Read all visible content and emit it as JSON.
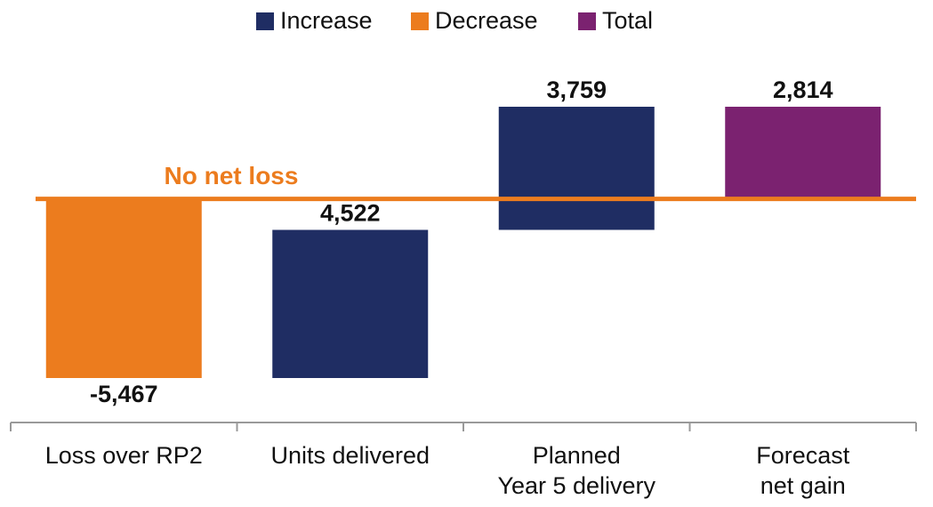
{
  "chart_data": {
    "type": "waterfall",
    "legend": [
      {
        "name": "Increase",
        "color": "#1f2d63"
      },
      {
        "name": "Decrease",
        "color": "#ec7c1e"
      },
      {
        "name": "Total",
        "color": "#7b2270"
      }
    ],
    "categories": [
      [
        "Loss over RP2"
      ],
      [
        "Units delivered"
      ],
      [
        "Planned",
        "Year 5 delivery"
      ],
      [
        "Forecast",
        "net gain"
      ]
    ],
    "values": [
      -5467,
      4522,
      3759,
      2814
    ],
    "value_labels": [
      "-5,467",
      "4,522",
      "3,759",
      "2,814"
    ],
    "totals": [
      false,
      false,
      false,
      true
    ],
    "annotation": {
      "text": "No net loss",
      "value": 0,
      "color": "#ec7c1e"
    }
  }
}
